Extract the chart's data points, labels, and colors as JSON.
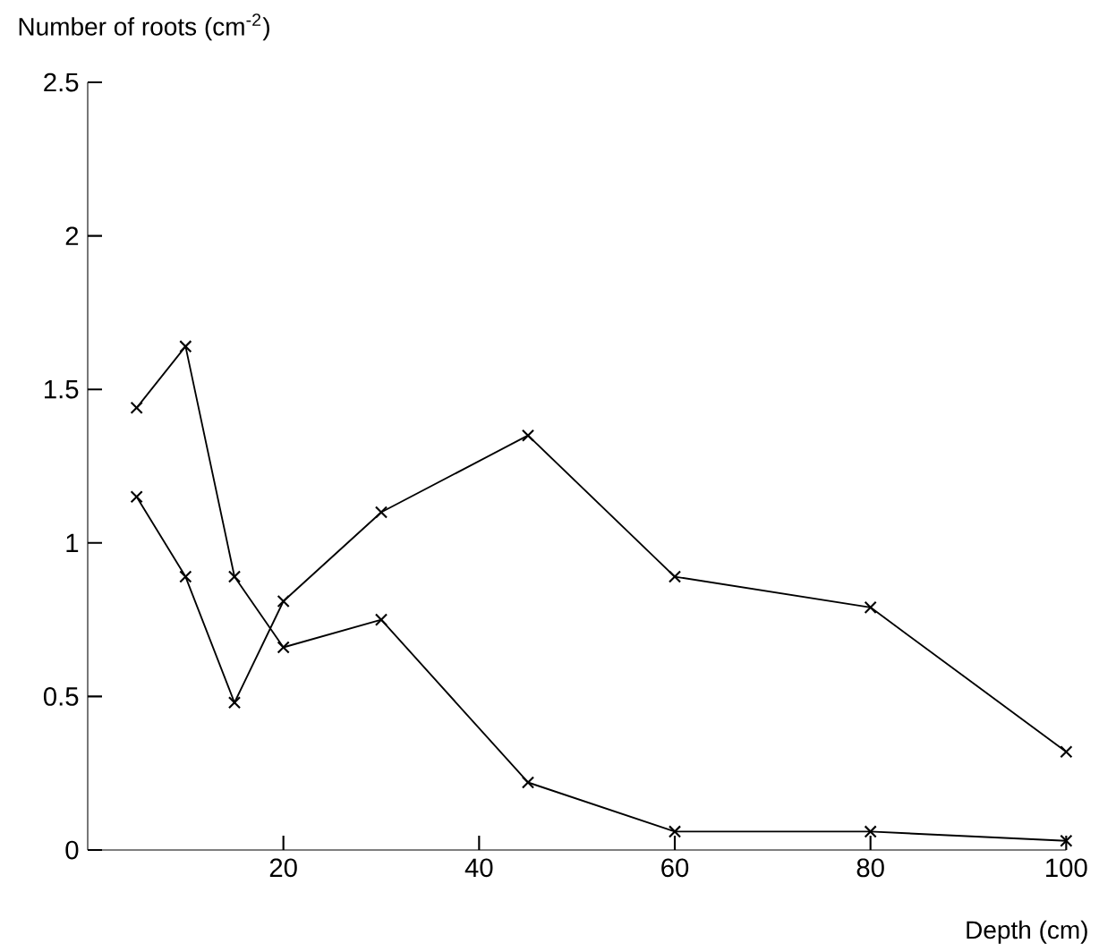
{
  "chart_data": {
    "type": "line",
    "xlabel": "Depth (cm)",
    "ylabel": "Number of roots (cm$^{-2}$)",
    "x": [
      5,
      10,
      15,
      20,
      30,
      45,
      60,
      80,
      100
    ],
    "series": [
      {
        "color": "#000000",
        "values": [
          1.44,
          1.64,
          0.89,
          0.66,
          0.75,
          0.22,
          0.06,
          0.06,
          0.03
        ]
      },
      {
        "color": "#000000",
        "values": [
          1.15,
          0.89,
          0.48,
          0.81,
          1.1,
          1.35,
          0.89,
          0.79,
          0.32
        ]
      }
    ],
    "xlim": [
      0,
      100
    ],
    "ylim": [
      0,
      2.5
    ],
    "xticks": [
      20,
      40,
      60,
      80,
      100
    ],
    "yticks": [
      0,
      0.5,
      1,
      1.5,
      2,
      2.5
    ],
    "marker": "cross",
    "line_style": "solid",
    "grid": false
  }
}
